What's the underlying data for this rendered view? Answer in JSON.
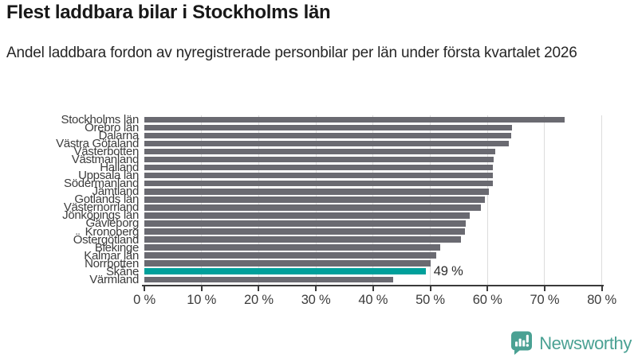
{
  "title": "Flest laddbara bilar i Stockholms län",
  "subtitle": "Andel laddbara fordon av nyregistrerade personbilar per län under första kvartalet 2026",
  "annotation": {
    "text": "49 %",
    "category": "Skåne"
  },
  "colors": {
    "bar": "#6a6a71",
    "highlight": "#00a09b",
    "grid": "#dcdcdc",
    "axis": "#3a3a3a",
    "text": "#3c3c3c",
    "title": "#191919",
    "brand": "#4aa193"
  },
  "chart_data": {
    "type": "bar",
    "orientation": "horizontal",
    "title": "Flest laddbara bilar i Stockholms län",
    "subtitle": "Andel laddbara fordon av nyregistrerade personbilar per län under första kvartalet 2026",
    "categories": [
      "Stockholms län",
      "Örebro län",
      "Dalarna",
      "Västra Götaland",
      "Västerbotten",
      "Västmanland",
      "Halland",
      "Uppsala län",
      "Södermanland",
      "Jämtland",
      "Gotlands län",
      "Västernorrland",
      "Jönköpings län",
      "Gävleborg",
      "Kronoberg",
      "Östergötland",
      "Blekinge",
      "Kalmar län",
      "Norrbotten",
      "Skåne",
      "Värmland"
    ],
    "values": [
      73.5,
      64.3,
      64.1,
      63.7,
      61.3,
      61.1,
      61.0,
      61.0,
      60.9,
      60.2,
      59.5,
      58.9,
      56.9,
      56.2,
      56.1,
      55.3,
      51.8,
      51.0,
      50.0,
      49.2,
      43.5
    ],
    "unit": "%",
    "xlim": [
      0,
      80
    ],
    "xticks": [
      0,
      10,
      20,
      30,
      40,
      50,
      60,
      70,
      80
    ],
    "xtick_labels": [
      "0 %",
      "10 %",
      "20 %",
      "30 %",
      "40 %",
      "50 %",
      "60 %",
      "70 %",
      "80 %"
    ],
    "grid": true,
    "legend": false,
    "highlight_category": "Skåne",
    "data_label": {
      "category": "Skåne",
      "text": "49 %"
    }
  },
  "brand": {
    "name": "Newsworthy",
    "icon": "newsworthy-speech-bubble-chart-icon"
  }
}
